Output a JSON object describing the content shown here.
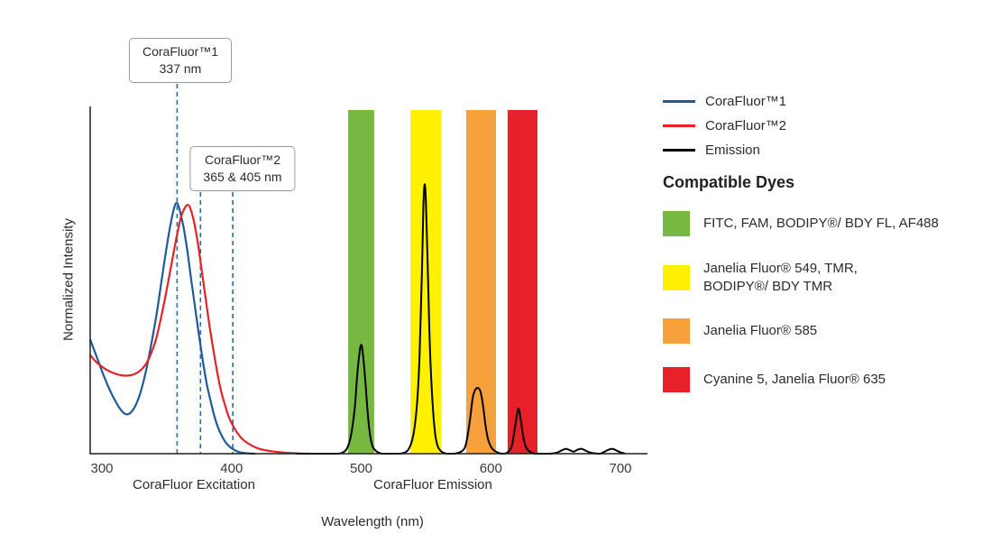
{
  "chart_data": {
    "type": "line",
    "title": "",
    "xlabel": "Wavelength (nm)",
    "ylabel": "Normalized Intensity",
    "x_axis": {
      "min": 291,
      "max": 720,
      "ticks": [
        300,
        400,
        500,
        600,
        700
      ]
    },
    "y_axis": {
      "min": 0,
      "max": 1,
      "ticks": []
    },
    "grid": false,
    "legend_position": "top-right",
    "axis_captions": [
      {
        "text": "CoraFluor Excitation"
      },
      {
        "text": "CoraFluor Emission"
      }
    ],
    "guide_lines_nm": [
      358,
      376,
      401
    ],
    "emission_bands": [
      {
        "dye": "FITC, FAM, BODIPY®/ BDY FL, AF488",
        "color": "#77B843",
        "from_nm": 490,
        "to_nm": 510
      },
      {
        "dye": "Janelia Fluor® 549, TMR, BODIPY®/ BDY TMR",
        "color": "#FFF100",
        "from_nm": 538,
        "to_nm": 562
      },
      {
        "dye": "Janelia Fluor® 585",
        "color": "#F7A13C",
        "from_nm": 581,
        "to_nm": 604
      },
      {
        "dye": "Cyanine 5, Janelia Fluor® 635",
        "color": "#E62129",
        "from_nm": 613,
        "to_nm": 636
      }
    ],
    "series": [
      {
        "name": "CoraFluor™1",
        "color": "#1E5B97",
        "width": 2.2,
        "points": [
          [
            291,
            0.33
          ],
          [
            294,
            0.3
          ],
          [
            298,
            0.26
          ],
          [
            302,
            0.22
          ],
          [
            306,
            0.185
          ],
          [
            310,
            0.155
          ],
          [
            314,
            0.13
          ],
          [
            318,
            0.115
          ],
          [
            322,
            0.118
          ],
          [
            326,
            0.14
          ],
          [
            330,
            0.18
          ],
          [
            334,
            0.24
          ],
          [
            338,
            0.315
          ],
          [
            342,
            0.4
          ],
          [
            346,
            0.5
          ],
          [
            350,
            0.6
          ],
          [
            353,
            0.665
          ],
          [
            356,
            0.715
          ],
          [
            358,
            0.725
          ],
          [
            360,
            0.705
          ],
          [
            363,
            0.655
          ],
          [
            366,
            0.585
          ],
          [
            369,
            0.5
          ],
          [
            372,
            0.42
          ],
          [
            375,
            0.34
          ],
          [
            378,
            0.265
          ],
          [
            381,
            0.2
          ],
          [
            384,
            0.15
          ],
          [
            387,
            0.105
          ],
          [
            390,
            0.072
          ],
          [
            393,
            0.048
          ],
          [
            396,
            0.03
          ],
          [
            400,
            0.016
          ],
          [
            404,
            0.007
          ],
          [
            408,
            0.003
          ],
          [
            413,
            0.001
          ],
          [
            418,
            0
          ]
        ]
      },
      {
        "name": "CoraFluor™2",
        "color": "#E62227",
        "width": 2.2,
        "points": [
          [
            291,
            0.285
          ],
          [
            295,
            0.268
          ],
          [
            300,
            0.252
          ],
          [
            305,
            0.24
          ],
          [
            310,
            0.232
          ],
          [
            315,
            0.227
          ],
          [
            320,
            0.226
          ],
          [
            325,
            0.23
          ],
          [
            330,
            0.242
          ],
          [
            334,
            0.26
          ],
          [
            338,
            0.29
          ],
          [
            342,
            0.335
          ],
          [
            346,
            0.4
          ],
          [
            350,
            0.475
          ],
          [
            354,
            0.555
          ],
          [
            358,
            0.635
          ],
          [
            361,
            0.685
          ],
          [
            364,
            0.712
          ],
          [
            366,
            0.72
          ],
          [
            368,
            0.712
          ],
          [
            371,
            0.672
          ],
          [
            374,
            0.61
          ],
          [
            377,
            0.53
          ],
          [
            380,
            0.45
          ],
          [
            383,
            0.37
          ],
          [
            386,
            0.3
          ],
          [
            389,
            0.235
          ],
          [
            392,
            0.18
          ],
          [
            395,
            0.14
          ],
          [
            398,
            0.105
          ],
          [
            402,
            0.075
          ],
          [
            406,
            0.052
          ],
          [
            410,
            0.037
          ],
          [
            415,
            0.025
          ],
          [
            420,
            0.016
          ],
          [
            426,
            0.01
          ],
          [
            433,
            0.006
          ],
          [
            441,
            0.003
          ],
          [
            450,
            0.001
          ],
          [
            460,
            0
          ]
        ]
      },
      {
        "name": "Emission",
        "color": "#000000",
        "width": 2,
        "points": [
          [
            450,
            0
          ],
          [
            470,
            0
          ],
          [
            482,
            0
          ],
          [
            486,
            0.004
          ],
          [
            489,
            0.015
          ],
          [
            492,
            0.05
          ],
          [
            495,
            0.13
          ],
          [
            497,
            0.23
          ],
          [
            499,
            0.3
          ],
          [
            500,
            0.315
          ],
          [
            501,
            0.3
          ],
          [
            503,
            0.22
          ],
          [
            505,
            0.12
          ],
          [
            507,
            0.05
          ],
          [
            509,
            0.02
          ],
          [
            512,
            0.006
          ],
          [
            516,
            0
          ],
          [
            524,
            0
          ],
          [
            530,
            0
          ],
          [
            536,
            0.01
          ],
          [
            540,
            0.05
          ],
          [
            543,
            0.14
          ],
          [
            545,
            0.28
          ],
          [
            547,
            0.55
          ],
          [
            548,
            0.72
          ],
          [
            549,
            0.78
          ],
          [
            550,
            0.72
          ],
          [
            551.5,
            0.52
          ],
          [
            553,
            0.31
          ],
          [
            555,
            0.15
          ],
          [
            557,
            0.06
          ],
          [
            559,
            0.022
          ],
          [
            562,
            0.006
          ],
          [
            566,
            0
          ],
          [
            572,
            0
          ],
          [
            578,
            0.008
          ],
          [
            581,
            0.03
          ],
          [
            584,
            0.1
          ],
          [
            586,
            0.16
          ],
          [
            588,
            0.185
          ],
          [
            590,
            0.19
          ],
          [
            592,
            0.18
          ],
          [
            594,
            0.14
          ],
          [
            596,
            0.08
          ],
          [
            598,
            0.04
          ],
          [
            601,
            0.015
          ],
          [
            605,
            0.004
          ],
          [
            609,
            0
          ],
          [
            613,
            0.004
          ],
          [
            616,
            0.02
          ],
          [
            618,
            0.06
          ],
          [
            620,
            0.11
          ],
          [
            621.5,
            0.13
          ],
          [
            623,
            0.1
          ],
          [
            625,
            0.05
          ],
          [
            627,
            0.02
          ],
          [
            630,
            0.006
          ],
          [
            634,
            0
          ],
          [
            640,
            0
          ],
          [
            646,
            0
          ],
          [
            651,
            0.003
          ],
          [
            655,
            0.01
          ],
          [
            658,
            0.014
          ],
          [
            661,
            0.01
          ],
          [
            664,
            0.006
          ],
          [
            667,
            0.012
          ],
          [
            670,
            0.014
          ],
          [
            673,
            0.009
          ],
          [
            676,
            0.004
          ],
          [
            680,
            0.001
          ],
          [
            684,
            0
          ],
          [
            688,
            0.006
          ],
          [
            691,
            0.012
          ],
          [
            694,
            0.014
          ],
          [
            697,
            0.009
          ],
          [
            700,
            0.004
          ],
          [
            703,
            0.001
          ]
        ]
      }
    ],
    "guide_line_color": "#2E6DA4",
    "axis_color": "#231F20"
  },
  "annotations": [
    {
      "title": "CoraFluor™1",
      "subtitle": "337 nm"
    },
    {
      "title": "CoraFluor™2",
      "subtitle": "365 & 405 nm"
    }
  ],
  "legend": {
    "items": [
      {
        "label": "CoraFluor™1",
        "color": "#1E5B97"
      },
      {
        "label": "CoraFluor™2",
        "color": "#E62227"
      },
      {
        "label": "Emission",
        "color": "#000000"
      }
    ]
  },
  "dyes": {
    "heading": "Compatible Dyes",
    "items": [
      {
        "color": "#77B843",
        "lines": [
          "FITC, FAM, BODIPY®/ BDY FL, AF488"
        ]
      },
      {
        "color": "#FFF100",
        "lines": [
          "Janelia Fluor® 549, TMR,",
          "BODIPY®/ BDY TMR"
        ]
      },
      {
        "color": "#F7A13C",
        "lines": [
          "Janelia Fluor® 585"
        ]
      },
      {
        "color": "#E62129",
        "lines": [
          "Cyanine 5, Janelia Fluor® 635"
        ]
      }
    ]
  }
}
